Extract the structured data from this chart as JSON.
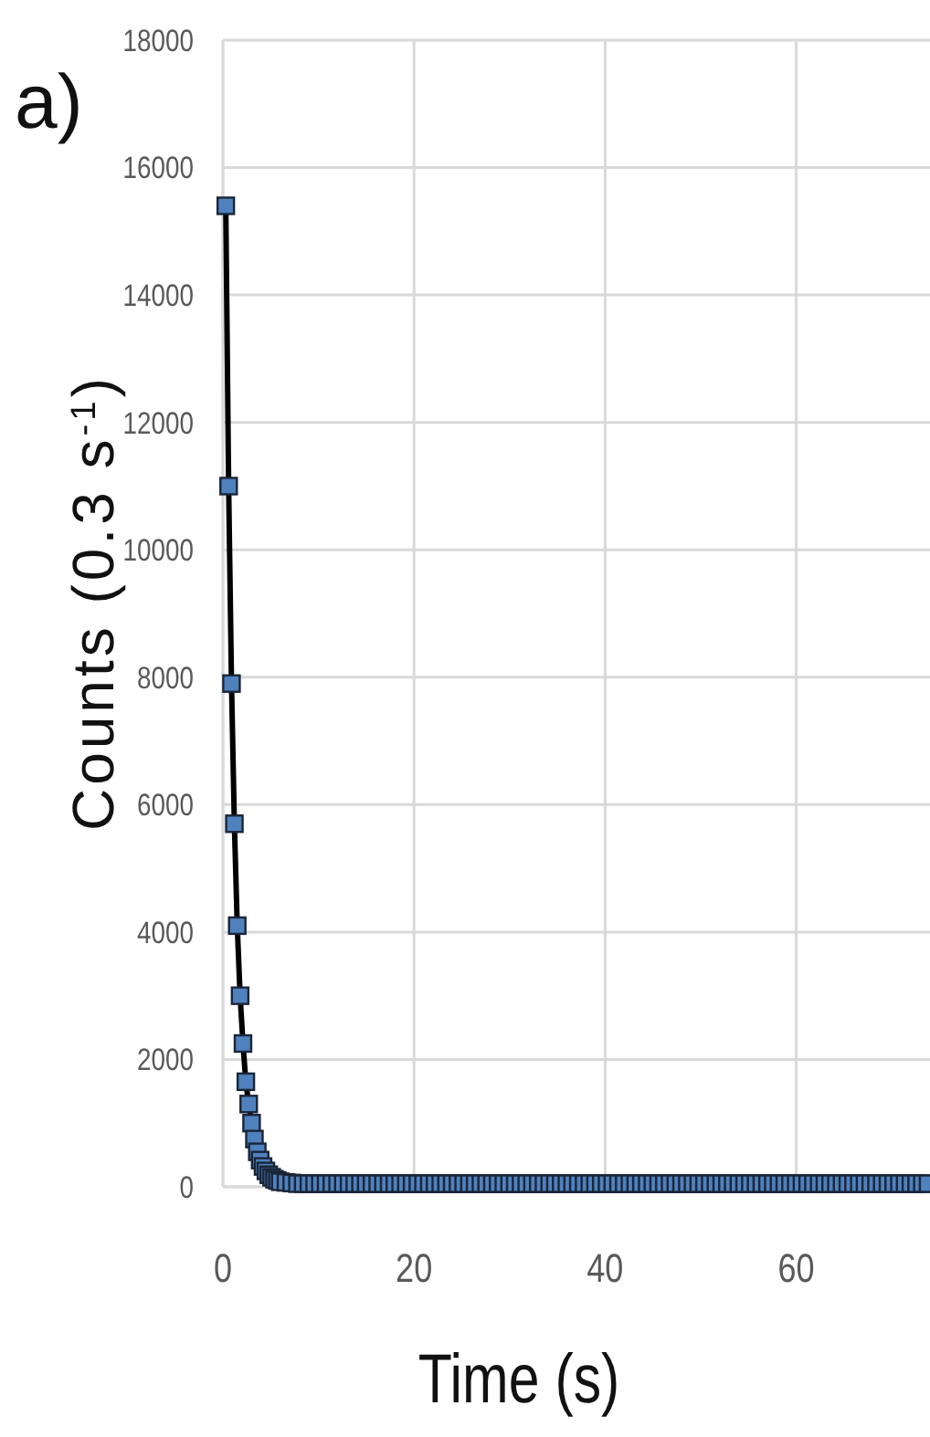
{
  "chart_data": {
    "type": "line",
    "xlabel": "Time (s)",
    "ylabel": "Counts (0.3 s$^{-1}$)",
    "annotations": [
      "a)"
    ],
    "xlim": [
      0,
      74
    ],
    "xticks": [
      0,
      20,
      40,
      60
    ],
    "ylim": [
      0,
      18000
    ],
    "yticks": [
      0,
      2000,
      4000,
      6000,
      8000,
      10000,
      12000,
      14000,
      16000,
      18000
    ],
    "grid": true,
    "marker": "square",
    "line_style": "solid",
    "series": [
      {
        "color": "#4f81bd",
        "x": [
          0.3,
          0.6,
          0.9,
          1.2,
          1.5,
          1.8,
          2.1,
          2.4,
          2.7,
          3,
          3.3,
          3.6,
          3.9,
          4.2,
          4.5,
          4.8,
          5.1,
          5.4,
          5.7,
          6,
          6.6,
          7.2,
          7.8,
          8.4,
          9,
          9.6,
          10.2,
          10.8,
          11.4,
          12,
          12.6,
          13.2,
          13.8,
          14.4,
          15,
          15.6,
          16.2,
          16.8,
          17.4,
          18,
          18.6,
          19.2,
          19.8,
          20.4,
          21,
          21.6,
          22.2,
          22.8,
          23.4,
          24,
          24.6,
          25.2,
          25.8,
          26.4,
          27,
          27.6,
          28.2,
          28.8,
          29.4,
          30,
          30.6,
          31.2,
          31.8,
          32.4,
          33,
          33.6,
          34.2,
          34.8,
          35.4,
          36,
          36.6,
          37.2,
          37.8,
          38.4,
          39,
          39.6,
          40.2,
          40.8,
          41.4,
          42,
          42.6,
          43.2,
          43.8,
          44.4,
          45,
          45.6,
          46.2,
          46.8,
          47.4,
          48,
          48.6,
          49.2,
          49.8,
          50.4,
          51,
          51.6,
          52.2,
          52.8,
          53.4,
          54,
          54.6,
          55.2,
          55.8,
          56.4,
          57,
          57.6,
          58.2,
          58.8,
          59.4,
          60,
          60.6,
          61.2,
          61.8,
          62.4,
          63,
          63.6,
          64.2,
          64.8,
          65.4,
          66,
          66.6,
          67.2,
          67.8,
          68.4,
          69,
          69.6,
          70.2,
          70.8,
          71.4,
          72,
          72.6,
          73.2,
          73.8
        ],
        "values": [
          15400,
          11000,
          7900,
          5700,
          4100,
          3000,
          2250,
          1650,
          1300,
          1000,
          750,
          550,
          420,
          320,
          250,
          190,
          150,
          120,
          100,
          80,
          70,
          60,
          50,
          50,
          50,
          50,
          50,
          50,
          50,
          50,
          50,
          50,
          50,
          50,
          50,
          50,
          50,
          50,
          50,
          50,
          50,
          50,
          50,
          50,
          50,
          50,
          50,
          50,
          50,
          50,
          50,
          50,
          50,
          50,
          50,
          50,
          50,
          50,
          50,
          50,
          50,
          50,
          50,
          50,
          50,
          50,
          50,
          50,
          50,
          50,
          50,
          50,
          50,
          50,
          50,
          50,
          50,
          50,
          50,
          50,
          50,
          50,
          50,
          50,
          50,
          50,
          50,
          50,
          50,
          50,
          50,
          50,
          50,
          50,
          50,
          50,
          50,
          50,
          50,
          50,
          50,
          50,
          50,
          50,
          50,
          50,
          50,
          50,
          50,
          50,
          50,
          50,
          50,
          50,
          50,
          50,
          50,
          50,
          50,
          50,
          50,
          50,
          50,
          50,
          50,
          50,
          50,
          50,
          50,
          50,
          50,
          50,
          50
        ]
      }
    ]
  }
}
